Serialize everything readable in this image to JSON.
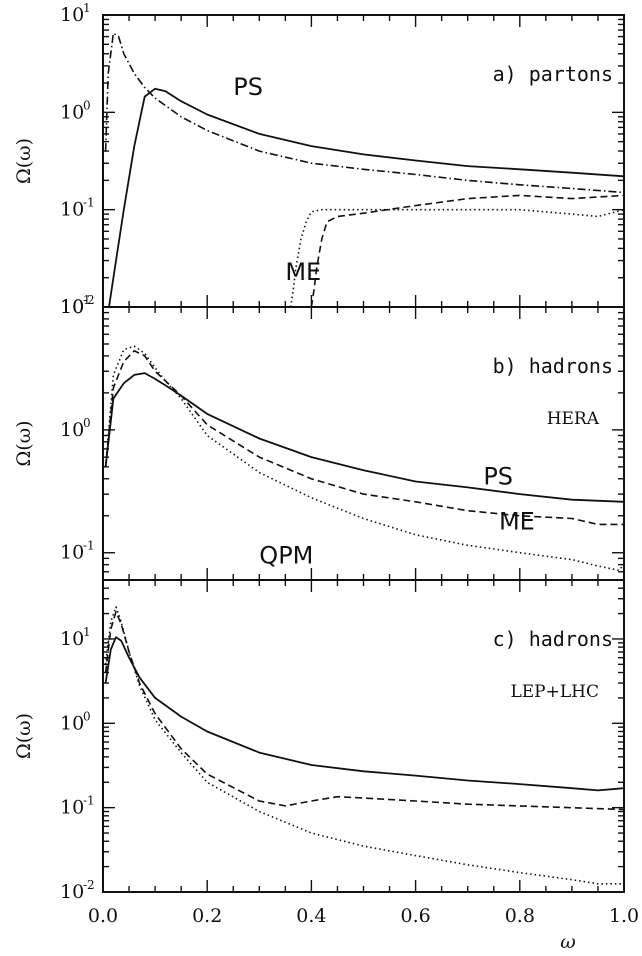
{
  "chart_data": [
    {
      "type": "line",
      "panel_label": "a) partons",
      "subtitle": "",
      "ylabel": "Ω(ω)",
      "xlabel": "",
      "xlim": [
        0,
        1
      ],
      "ylim": [
        0.01,
        10
      ],
      "yscale": "log",
      "ytick_labels": [
        {
          "value": 10,
          "base": "10",
          "exp": "1"
        },
        {
          "value": 1,
          "base": "10",
          "exp": "0"
        },
        {
          "value": 0.1,
          "base": "10",
          "exp": "-1"
        },
        {
          "value": 0.01,
          "base": "10",
          "exp": "-2"
        }
      ],
      "curve_labels": [
        {
          "text": "PS",
          "x": 0.25,
          "y": 1.5
        },
        {
          "text": "ME",
          "x": 0.35,
          "y": 0.019
        }
      ],
      "series": [
        {
          "style": "solid",
          "x": [
            0.003,
            0.02,
            0.04,
            0.06,
            0.08,
            0.1,
            0.12,
            0.15,
            0.2,
            0.3,
            0.4,
            0.5,
            0.6,
            0.7,
            0.8,
            0.9,
            1.0
          ],
          "y": [
            0.005,
            0.02,
            0.1,
            0.45,
            1.45,
            1.75,
            1.65,
            1.3,
            0.95,
            0.6,
            0.45,
            0.37,
            0.32,
            0.28,
            0.26,
            0.24,
            0.22
          ]
        },
        {
          "style": "dashdot",
          "x": [
            0.005,
            0.01,
            0.02,
            0.03,
            0.04,
            0.06,
            0.08,
            0.1,
            0.15,
            0.2,
            0.3,
            0.4,
            0.5,
            0.6,
            0.7,
            0.8,
            0.9,
            1.0
          ],
          "y": [
            0.4,
            2.5,
            6.5,
            6.0,
            4.0,
            2.5,
            1.8,
            1.4,
            0.9,
            0.65,
            0.4,
            0.3,
            0.26,
            0.23,
            0.2,
            0.18,
            0.165,
            0.15
          ]
        },
        {
          "style": "dashed",
          "x": [
            0.4,
            0.405,
            0.41,
            0.42,
            0.43,
            0.45,
            0.5,
            0.6,
            0.7,
            0.8,
            0.9,
            1.0
          ],
          "y": [
            0.01,
            0.015,
            0.025,
            0.05,
            0.075,
            0.085,
            0.092,
            0.11,
            0.13,
            0.14,
            0.13,
            0.14
          ]
        },
        {
          "style": "dotted",
          "x": [
            0.36,
            0.365,
            0.37,
            0.38,
            0.39,
            0.4,
            0.42,
            0.45,
            0.5,
            0.6,
            0.7,
            0.8,
            0.9,
            0.95,
            1.0
          ],
          "y": [
            0.01,
            0.015,
            0.025,
            0.05,
            0.075,
            0.095,
            0.1,
            0.1,
            0.1,
            0.1,
            0.1,
            0.1,
            0.09,
            0.085,
            0.1
          ]
        }
      ]
    },
    {
      "type": "line",
      "panel_label": "b) hadrons",
      "subtitle": "HERA",
      "ylabel": "Ω(ω)",
      "xlabel": "",
      "xlim": [
        0,
        1
      ],
      "ylim": [
        0.06,
        10
      ],
      "yscale": "log",
      "ytick_labels": [
        {
          "value": 10,
          "base": "10",
          "exp": "1"
        },
        {
          "value": 1,
          "base": "10",
          "exp": "0"
        },
        {
          "value": 0.1,
          "base": "10",
          "exp": "-1"
        }
      ],
      "curve_labels": [
        {
          "text": "PS",
          "x": 0.73,
          "y": 0.36
        },
        {
          "text": "ME",
          "x": 0.76,
          "y": 0.155
        },
        {
          "text": "QPM",
          "x": 0.3,
          "y": 0.082
        }
      ],
      "series": [
        {
          "style": "solid",
          "x": [
            0.005,
            0.02,
            0.04,
            0.06,
            0.08,
            0.1,
            0.12,
            0.15,
            0.2,
            0.3,
            0.4,
            0.5,
            0.6,
            0.7,
            0.8,
            0.9,
            1.0
          ],
          "y": [
            0.5,
            1.8,
            2.4,
            2.8,
            2.9,
            2.6,
            2.3,
            1.9,
            1.35,
            0.85,
            0.6,
            0.47,
            0.38,
            0.34,
            0.3,
            0.27,
            0.26
          ]
        },
        {
          "style": "dashed",
          "x": [
            0.005,
            0.02,
            0.04,
            0.06,
            0.08,
            0.1,
            0.12,
            0.15,
            0.2,
            0.3,
            0.4,
            0.5,
            0.6,
            0.7,
            0.8,
            0.9,
            0.95,
            1.0
          ],
          "y": [
            0.5,
            2.2,
            3.6,
            4.4,
            4.0,
            3.0,
            2.5,
            1.9,
            1.1,
            0.6,
            0.4,
            0.3,
            0.26,
            0.22,
            0.2,
            0.19,
            0.17,
            0.17
          ]
        },
        {
          "style": "dotted",
          "x": [
            0.005,
            0.02,
            0.04,
            0.06,
            0.08,
            0.1,
            0.12,
            0.15,
            0.2,
            0.3,
            0.4,
            0.5,
            0.6,
            0.7,
            0.8,
            0.9,
            0.95,
            0.99,
            1.0
          ],
          "y": [
            0.5,
            2.8,
            4.5,
            4.8,
            4.2,
            3.2,
            2.5,
            1.8,
            0.9,
            0.45,
            0.28,
            0.19,
            0.14,
            0.115,
            0.1,
            0.088,
            0.078,
            0.072,
            0.08
          ]
        }
      ]
    },
    {
      "type": "line",
      "panel_label": "c) hadrons",
      "subtitle": "LEP+LHC",
      "ylabel": "Ω(ω)",
      "xlabel": "ω",
      "xlim": [
        0,
        1
      ],
      "ylim": [
        0.01,
        50
      ],
      "yscale": "log",
      "xtick_labels": [
        "0.0",
        "0.2",
        "0.4",
        "0.6",
        "0.8",
        "1.0"
      ],
      "ytick_labels": [
        {
          "value": 10,
          "base": "10",
          "exp": "1"
        },
        {
          "value": 1,
          "base": "10",
          "exp": "0"
        },
        {
          "value": 0.1,
          "base": "10",
          "exp": "-1"
        },
        {
          "value": 0.01,
          "base": "10",
          "exp": "-2"
        }
      ],
      "curve_labels": [],
      "series": [
        {
          "style": "solid",
          "x": [
            0.005,
            0.015,
            0.025,
            0.035,
            0.05,
            0.07,
            0.1,
            0.15,
            0.2,
            0.3,
            0.4,
            0.5,
            0.6,
            0.7,
            0.8,
            0.9,
            0.95,
            1.0
          ],
          "y": [
            3.0,
            7.5,
            10.5,
            9.5,
            6.0,
            3.5,
            2.0,
            1.2,
            0.8,
            0.45,
            0.32,
            0.27,
            0.24,
            0.21,
            0.19,
            0.17,
            0.16,
            0.17
          ]
        },
        {
          "style": "dashed",
          "x": [
            0.005,
            0.015,
            0.025,
            0.035,
            0.05,
            0.07,
            0.1,
            0.15,
            0.2,
            0.3,
            0.35,
            0.4,
            0.45,
            0.5,
            0.6,
            0.7,
            0.8,
            0.9,
            1.0
          ],
          "y": [
            4.0,
            13.0,
            21.0,
            15.0,
            7.0,
            3.0,
            1.3,
            0.5,
            0.25,
            0.12,
            0.105,
            0.12,
            0.135,
            0.13,
            0.12,
            0.11,
            0.105,
            0.1,
            0.095
          ]
        },
        {
          "style": "dotted",
          "x": [
            0.005,
            0.015,
            0.025,
            0.035,
            0.05,
            0.07,
            0.1,
            0.15,
            0.2,
            0.3,
            0.4,
            0.5,
            0.6,
            0.7,
            0.8,
            0.9,
            0.95,
            1.0
          ],
          "y": [
            5.0,
            16.0,
            24.0,
            16.0,
            7.0,
            2.8,
            1.1,
            0.45,
            0.2,
            0.09,
            0.05,
            0.035,
            0.027,
            0.021,
            0.017,
            0.014,
            0.0125,
            0.0125
          ]
        }
      ]
    }
  ]
}
